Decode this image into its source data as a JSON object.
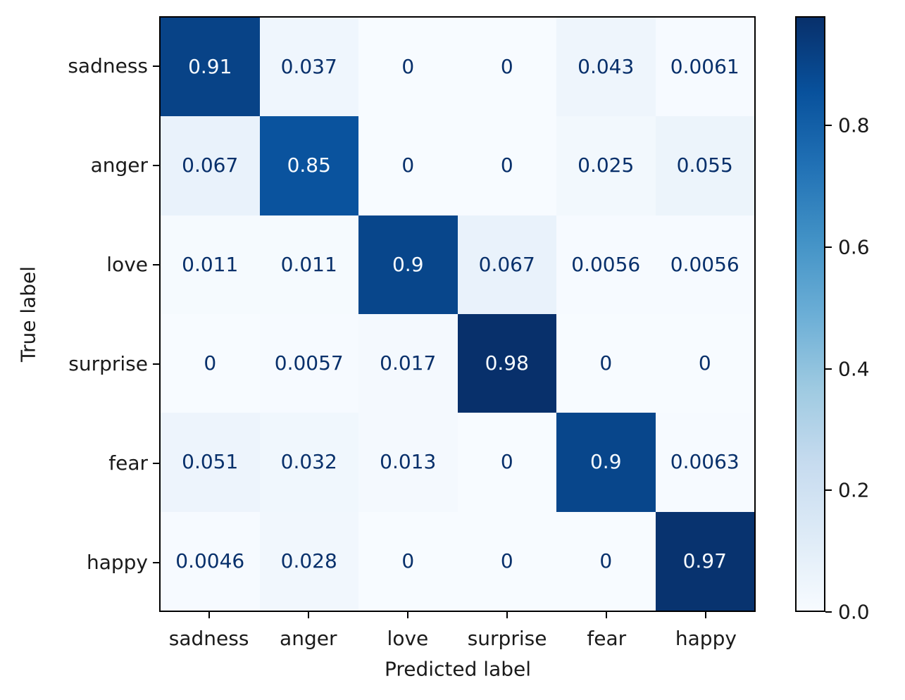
{
  "chart_data": {
    "type": "heatmap",
    "title": "",
    "xlabel": "Predicted label",
    "ylabel": "True label",
    "categories": [
      "sadness",
      "anger",
      "love",
      "surprise",
      "fear",
      "happy"
    ],
    "matrix": [
      [
        0.91,
        0.037,
        0,
        0,
        0.043,
        0.0061
      ],
      [
        0.067,
        0.85,
        0,
        0,
        0.025,
        0.055
      ],
      [
        0.011,
        0.011,
        0.9,
        0.067,
        0.0056,
        0.0056
      ],
      [
        0,
        0.0057,
        0.017,
        0.98,
        0,
        0
      ],
      [
        0.051,
        0.032,
        0.013,
        0,
        0.9,
        0.0063
      ],
      [
        0.0046,
        0.028,
        0,
        0,
        0,
        0.97
      ]
    ],
    "cell_labels": [
      [
        "0.91",
        "0.037",
        "0",
        "0",
        "0.043",
        "0.0061"
      ],
      [
        "0.067",
        "0.85",
        "0",
        "0",
        "0.025",
        "0.055"
      ],
      [
        "0.011",
        "0.011",
        "0.9",
        "0.067",
        "0.0056",
        "0.0056"
      ],
      [
        "0",
        "0.0057",
        "0.017",
        "0.98",
        "0",
        "0"
      ],
      [
        "0.051",
        "0.032",
        "0.013",
        "0",
        "0.9",
        "0.0063"
      ],
      [
        "0.0046",
        "0.028",
        "0",
        "0",
        "0",
        "0.97"
      ]
    ],
    "colormap": "Blues",
    "vmin": 0,
    "vmax": 0.98,
    "colorbar": {
      "position": "right",
      "tick_labels": [
        "0.0",
        "0.2",
        "0.4",
        "0.6",
        "0.8"
      ],
      "tick_values": [
        0.0,
        0.2,
        0.4,
        0.6,
        0.8
      ]
    },
    "grid": false,
    "colors": {
      "dark_text": "#08306b",
      "light_text": "#f7fbff",
      "spine": "#000000",
      "background": "#ffffff"
    }
  }
}
